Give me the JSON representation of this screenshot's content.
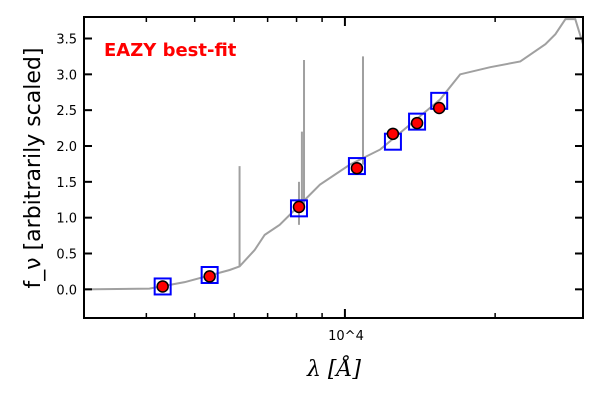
{
  "chart_data": {
    "type": "scatter",
    "title": "",
    "annotation": "EAZY best-fit",
    "xlabel": "λ [Å]",
    "ylabel": "f_ν [arbitrarily scaled]",
    "xscale": "log",
    "xlim": [
      3000,
      30000
    ],
    "ylim": [
      -0.4,
      3.8
    ],
    "xticks": [
      {
        "value": 10000,
        "label": "10^4"
      }
    ],
    "xminor": [
      4000,
      5000,
      6000,
      7000,
      8000,
      9000,
      20000
    ],
    "yticks": [
      0.0,
      0.5,
      1.0,
      1.5,
      2.0,
      2.5,
      3.0,
      3.5
    ],
    "ytick_labels": [
      "0.0",
      "0.5",
      "1.0",
      "1.5",
      "2.0",
      "2.5",
      "3.0",
      "3.5"
    ],
    "grid": false,
    "series": [
      {
        "name": "best-fit template",
        "kind": "line",
        "color": "#a0a0a0",
        "x": [
          3000,
          4057,
          4773,
          5875,
          6150,
          6596,
          6906,
          7400,
          8125,
          8910,
          10230,
          11760,
          13510,
          15520,
          17020,
          19550,
          22460,
          25220,
          26410,
          27660,
          28950,
          30000
        ],
        "y": [
          0.0,
          0.01,
          0.1,
          0.27,
          0.32,
          0.55,
          0.76,
          0.9,
          1.18,
          1.46,
          1.74,
          1.95,
          2.3,
          2.65,
          3.0,
          3.1,
          3.18,
          3.42,
          3.56,
          3.77,
          3.77,
          3.42
        ]
      },
      {
        "name": "emission lines",
        "kind": "lines",
        "color": "#a0a0a0",
        "x": [
          6150,
          8090,
          8200,
          8280,
          10870
        ],
        "y": [
          1.72,
          1.5,
          2.2,
          3.2,
          3.25
        ]
      },
      {
        "name": "template photometry",
        "kind": "square",
        "color": "#0000ff",
        "x": [
          4313,
          5357,
          8090,
          10570,
          12480,
          13950,
          15450
        ],
        "y": [
          0.04,
          0.2,
          1.13,
          1.72,
          2.06,
          2.34,
          2.63
        ]
      },
      {
        "name": "observed photometry",
        "kind": "circle",
        "color": "#ff0000",
        "x": [
          4313,
          5357,
          8090,
          10570,
          12480,
          13950,
          15450
        ],
        "y": [
          0.04,
          0.18,
          1.15,
          1.69,
          2.17,
          2.32,
          2.53
        ]
      }
    ]
  }
}
